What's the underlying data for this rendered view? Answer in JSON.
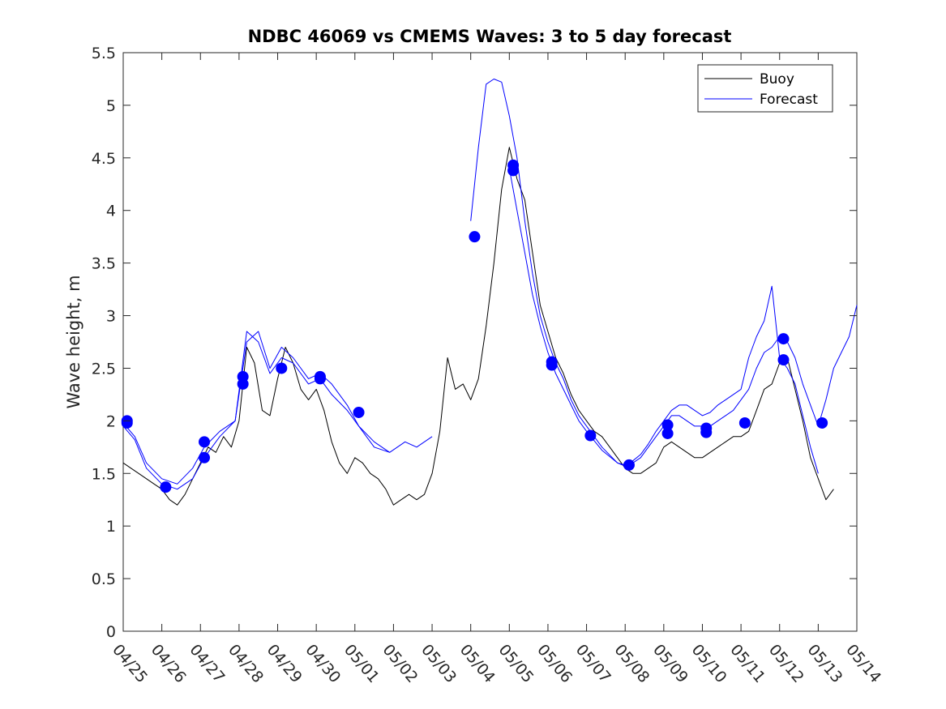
{
  "chart_data": {
    "type": "line",
    "title": "NDBC 46069 vs CMEMS Waves: 3 to 5 day forecast",
    "xlabel": "",
    "ylabel": "Wave height, m",
    "x_unit": "day",
    "xlim": [
      0,
      19
    ],
    "ylim": [
      0,
      5.5
    ],
    "x_ticks": [
      0,
      1,
      2,
      3,
      4,
      5,
      6,
      7,
      8,
      9,
      10,
      11,
      12,
      13,
      14,
      15,
      16,
      17,
      18,
      19
    ],
    "x_tick_labels": [
      "04/25",
      "04/26",
      "04/27",
      "04/28",
      "04/29",
      "04/30",
      "05/01",
      "05/02",
      "05/03",
      "05/04",
      "05/05",
      "05/06",
      "05/07",
      "05/08",
      "05/09",
      "05/10",
      "05/11",
      "05/12",
      "05/13",
      "05/14"
    ],
    "y_ticks": [
      0,
      0.5,
      1,
      1.5,
      2,
      2.5,
      3,
      3.5,
      4,
      4.5,
      5,
      5.5
    ],
    "y_tick_labels": [
      "0",
      "0.5",
      "1",
      "1.5",
      "2",
      "2.5",
      "3",
      "3.5",
      "4",
      "4.5",
      "5",
      "5.5"
    ],
    "grid": false,
    "legend": {
      "position": "top-right",
      "entries": [
        {
          "label": "Buoy",
          "color": "#000000"
        },
        {
          "label": "Forecast",
          "color": "#0000ff"
        }
      ]
    },
    "series": [
      {
        "name": "Buoy",
        "color": "#000000",
        "x": [
          0,
          0.2,
          0.4,
          0.6,
          0.8,
          1.0,
          1.2,
          1.4,
          1.6,
          1.8,
          2.0,
          2.2,
          2.4,
          2.6,
          2.8,
          3.0,
          3.2,
          3.4,
          3.6,
          3.8,
          4.0,
          4.2,
          4.4,
          4.6,
          4.8,
          5.0,
          5.2,
          5.4,
          5.6,
          5.8,
          6.0,
          6.2,
          6.4,
          6.6,
          6.8,
          7.0,
          7.2,
          7.4,
          7.6,
          7.8,
          8.0,
          8.2,
          8.4,
          8.6,
          8.8,
          9.0,
          9.2,
          9.4,
          9.6,
          9.8,
          10.0,
          10.2,
          10.4,
          10.6,
          10.8,
          11.0,
          11.2,
          11.4,
          11.6,
          11.8,
          12.0,
          12.2,
          12.4,
          12.6,
          12.8,
          13.0,
          13.2,
          13.4,
          13.6,
          13.8,
          14.0,
          14.2,
          14.4,
          14.6,
          14.8,
          15.0,
          15.2,
          15.4,
          15.6,
          15.8,
          16.0,
          16.2,
          16.4,
          16.6,
          16.8,
          17.0,
          17.2,
          17.4,
          17.6,
          17.8,
          18.0,
          18.2,
          18.4
        ],
        "y": [
          1.6,
          1.55,
          1.5,
          1.45,
          1.4,
          1.35,
          1.25,
          1.2,
          1.3,
          1.45,
          1.6,
          1.75,
          1.7,
          1.85,
          1.75,
          2.0,
          2.7,
          2.55,
          2.1,
          2.05,
          2.4,
          2.7,
          2.55,
          2.3,
          2.2,
          2.3,
          2.1,
          1.8,
          1.6,
          1.5,
          1.65,
          1.6,
          1.5,
          1.45,
          1.35,
          1.2,
          1.25,
          1.3,
          1.25,
          1.3,
          1.5,
          1.9,
          2.6,
          2.3,
          2.35,
          2.2,
          2.4,
          2.9,
          3.5,
          4.2,
          4.6,
          4.3,
          4.1,
          3.6,
          3.1,
          2.85,
          2.6,
          2.45,
          2.25,
          2.1,
          2.0,
          1.9,
          1.85,
          1.75,
          1.65,
          1.55,
          1.5,
          1.5,
          1.55,
          1.6,
          1.75,
          1.8,
          1.75,
          1.7,
          1.65,
          1.65,
          1.7,
          1.75,
          1.8,
          1.85,
          1.85,
          1.9,
          2.1,
          2.3,
          2.35,
          2.55,
          2.6,
          2.3,
          2.0,
          1.65,
          1.45,
          1.25,
          1.35
        ]
      },
      {
        "name": "Forecast",
        "color": "#0000ff",
        "x": [
          0,
          0.3,
          0.6,
          1.0,
          1.4,
          1.8,
          2.1,
          2.5,
          2.9,
          3.2,
          3.5,
          3.8,
          4.1,
          4.4,
          4.8,
          5.1,
          5.4,
          5.8,
          6.1,
          6.5,
          6.9,
          7.3,
          7.6,
          8.0
        ],
        "y": [
          1.98,
          1.85,
          1.6,
          1.45,
          1.4,
          1.55,
          1.75,
          1.9,
          2.0,
          2.85,
          2.75,
          2.45,
          2.6,
          2.55,
          2.35,
          2.4,
          2.25,
          2.1,
          1.95,
          1.75,
          1.7,
          1.8,
          1.75,
          1.85
        ]
      },
      {
        "name": "Forecast",
        "color": "#0000ff",
        "x": [
          9.0,
          9.2,
          9.4,
          9.6,
          9.8,
          10.0,
          10.2,
          10.4,
          10.6,
          10.8,
          11.0,
          11.2,
          11.4,
          11.6,
          11.8,
          12.0,
          12.4,
          12.8,
          13.0,
          13.2,
          13.4,
          13.6,
          13.8,
          14.0,
          14.2,
          14.4,
          14.6,
          14.8,
          15.0,
          15.2,
          15.4,
          15.6,
          15.8,
          16.0,
          16.2,
          16.4,
          16.6,
          16.8,
          17.0,
          17.2,
          17.4,
          17.6,
          17.8,
          18.0,
          18.2,
          18.4,
          18.6,
          18.8,
          19.0
        ],
        "y": [
          3.9,
          4.6,
          5.2,
          5.25,
          5.22,
          4.9,
          4.5,
          3.9,
          3.4,
          3.0,
          2.75,
          2.55,
          2.4,
          2.2,
          2.05,
          1.95,
          1.75,
          1.6,
          1.57,
          1.6,
          1.65,
          1.75,
          1.85,
          1.95,
          2.05,
          2.05,
          2.0,
          1.95,
          1.95,
          1.95,
          2.0,
          2.05,
          2.1,
          2.2,
          2.3,
          2.5,
          2.65,
          2.7,
          2.8,
          2.75,
          2.6,
          2.35,
          2.15,
          1.95,
          2.2,
          2.5,
          2.65,
          2.8,
          3.1
        ]
      },
      {
        "name": "Forecast",
        "color": "#0000ff",
        "x": [
          0,
          0.3,
          0.6,
          1.0,
          1.4,
          1.8,
          2.1,
          2.5,
          2.9,
          3.2,
          3.5,
          3.8,
          4.1,
          4.4,
          4.8,
          5.1,
          5.4,
          5.8,
          6.1,
          6.5,
          6.9
        ],
        "y": [
          1.95,
          1.82,
          1.55,
          1.4,
          1.35,
          1.45,
          1.65,
          1.85,
          2.0,
          2.75,
          2.85,
          2.5,
          2.7,
          2.6,
          2.4,
          2.45,
          2.35,
          2.15,
          1.95,
          1.8,
          1.7
        ]
      },
      {
        "name": "Forecast",
        "color": "#0000ff",
        "x": [
          10.0,
          10.2,
          10.4,
          10.6,
          10.8,
          11.0,
          11.2,
          11.4,
          11.6,
          11.8,
          12.0,
          12.4,
          12.8,
          13.0,
          13.2,
          13.4,
          13.6,
          13.8,
          14.0,
          14.2,
          14.4,
          14.6,
          14.8,
          15.0,
          15.2,
          15.4,
          15.6,
          15.8,
          16.0,
          16.2,
          16.4,
          16.6,
          16.8,
          17.0,
          17.2,
          17.4,
          17.6,
          17.8,
          18.0
        ],
        "y": [
          4.4,
          4.0,
          3.6,
          3.2,
          2.9,
          2.65,
          2.45,
          2.3,
          2.15,
          2.0,
          1.9,
          1.72,
          1.6,
          1.58,
          1.62,
          1.68,
          1.78,
          1.9,
          2.0,
          2.1,
          2.15,
          2.15,
          2.1,
          2.05,
          2.08,
          2.15,
          2.2,
          2.25,
          2.3,
          2.6,
          2.8,
          2.95,
          3.28,
          2.6,
          2.5,
          2.35,
          2.05,
          1.75,
          1.5
        ]
      }
    ],
    "markers": {
      "color": "#0000ff",
      "shape": "circle",
      "x": [
        0.1,
        0.1,
        1.1,
        2.1,
        2.1,
        3.1,
        3.1,
        4.1,
        5.1,
        5.1,
        6.1,
        9.1,
        10.1,
        10.1,
        11.1,
        11.1,
        12.1,
        13.1,
        14.1,
        14.1,
        15.1,
        15.1,
        16.1,
        17.1,
        17.1,
        18.1
      ],
      "y": [
        1.98,
        2.0,
        1.37,
        1.8,
        1.65,
        2.42,
        2.35,
        2.5,
        2.42,
        2.4,
        2.08,
        3.75,
        4.43,
        4.38,
        2.56,
        2.53,
        1.86,
        1.58,
        1.96,
        1.88,
        1.93,
        1.89,
        1.98,
        2.78,
        2.58,
        1.98
      ]
    }
  }
}
